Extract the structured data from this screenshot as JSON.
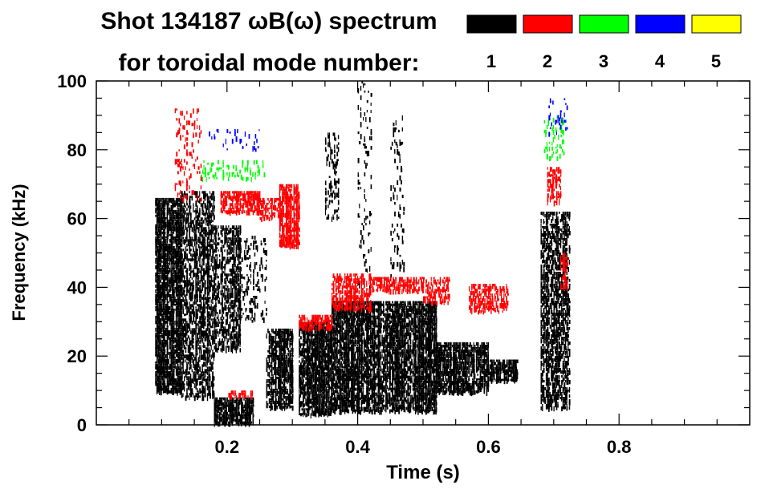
{
  "chart_data": {
    "type": "heatmap",
    "title_line1": "Shot 134187 ωB(ω) spectrum",
    "title_line2": "for toroidal mode number:",
    "xlabel": "Time (s)",
    "ylabel": "Frequency (kHz)",
    "xlim": [
      0.0,
      1.0
    ],
    "ylim": [
      0,
      100
    ],
    "x_major_ticks": [
      0.2,
      0.4,
      0.6,
      0.8
    ],
    "x_tick_labels": [
      "0.2",
      "0.4",
      "0.6",
      "0.8"
    ],
    "y_major_ticks": [
      0,
      20,
      40,
      60,
      80,
      100
    ],
    "y_tick_labels": [
      "0",
      "20",
      "40",
      "60",
      "80",
      "100"
    ],
    "legend": [
      {
        "label": "1",
        "color": "#000000"
      },
      {
        "label": "2",
        "color": "#ff0000"
      },
      {
        "label": "3",
        "color": "#00ff00"
      },
      {
        "label": "4",
        "color": "#0000ff"
      },
      {
        "label": "5",
        "color": "#ffff00"
      }
    ],
    "mode_regions": [
      {
        "mode": 1,
        "t0": 0.09,
        "t1": 0.13,
        "f0": 10,
        "f1": 66,
        "density": 0.85
      },
      {
        "mode": 1,
        "t0": 0.13,
        "t1": 0.18,
        "f0": 8,
        "f1": 68,
        "density": 0.55
      },
      {
        "mode": 1,
        "t0": 0.18,
        "t1": 0.22,
        "f0": 22,
        "f1": 58,
        "density": 0.55
      },
      {
        "mode": 1,
        "t0": 0.18,
        "t1": 0.24,
        "f0": 1,
        "f1": 8,
        "density": 0.9
      },
      {
        "mode": 1,
        "t0": 0.22,
        "t1": 0.26,
        "f0": 30,
        "f1": 55,
        "density": 0.2
      },
      {
        "mode": 1,
        "t0": 0.26,
        "t1": 0.3,
        "f0": 5,
        "f1": 28,
        "density": 0.8
      },
      {
        "mode": 1,
        "t0": 0.31,
        "t1": 0.36,
        "f0": 3,
        "f1": 30,
        "density": 0.85
      },
      {
        "mode": 1,
        "t0": 0.35,
        "t1": 0.37,
        "f0": 60,
        "f1": 85,
        "density": 0.25
      },
      {
        "mode": 1,
        "t0": 0.36,
        "t1": 0.52,
        "f0": 4,
        "f1": 36,
        "density": 0.8
      },
      {
        "mode": 1,
        "t0": 0.4,
        "t1": 0.42,
        "f0": 40,
        "f1": 100,
        "density": 0.12
      },
      {
        "mode": 1,
        "t0": 0.45,
        "t1": 0.47,
        "f0": 40,
        "f1": 90,
        "density": 0.1
      },
      {
        "mode": 1,
        "t0": 0.52,
        "t1": 0.6,
        "f0": 10,
        "f1": 24,
        "density": 0.75
      },
      {
        "mode": 1,
        "t0": 0.6,
        "t1": 0.645,
        "f0": 13,
        "f1": 19,
        "density": 0.75
      },
      {
        "mode": 1,
        "t0": 0.68,
        "t1": 0.725,
        "f0": 5,
        "f1": 62,
        "density": 0.6
      },
      {
        "mode": 2,
        "t0": 0.12,
        "t1": 0.16,
        "f0": 66,
        "f1": 92,
        "density": 0.15
      },
      {
        "mode": 2,
        "t0": 0.19,
        "t1": 0.25,
        "f0": 62,
        "f1": 68,
        "density": 0.7
      },
      {
        "mode": 2,
        "t0": 0.25,
        "t1": 0.28,
        "f0": 60,
        "f1": 66,
        "density": 0.5
      },
      {
        "mode": 2,
        "t0": 0.28,
        "t1": 0.31,
        "f0": 52,
        "f1": 70,
        "density": 0.8
      },
      {
        "mode": 2,
        "t0": 0.31,
        "t1": 0.36,
        "f0": 28,
        "f1": 32,
        "density": 0.7
      },
      {
        "mode": 2,
        "t0": 0.36,
        "t1": 0.42,
        "f0": 34,
        "f1": 44,
        "density": 0.6
      },
      {
        "mode": 2,
        "t0": 0.42,
        "t1": 0.5,
        "f0": 39,
        "f1": 43,
        "density": 0.6
      },
      {
        "mode": 2,
        "t0": 0.5,
        "t1": 0.54,
        "f0": 36,
        "f1": 43,
        "density": 0.5
      },
      {
        "mode": 2,
        "t0": 0.57,
        "t1": 0.63,
        "f0": 33,
        "f1": 41,
        "density": 0.5
      },
      {
        "mode": 2,
        "t0": 0.69,
        "t1": 0.71,
        "f0": 65,
        "f1": 75,
        "density": 0.5
      },
      {
        "mode": 2,
        "t0": 0.71,
        "t1": 0.72,
        "f0": 40,
        "f1": 50,
        "density": 0.4
      },
      {
        "mode": 2,
        "t0": 0.2,
        "t1": 0.24,
        "f0": 8,
        "f1": 10,
        "density": 0.5
      },
      {
        "mode": 3,
        "t0": 0.16,
        "t1": 0.26,
        "f0": 72,
        "f1": 77,
        "density": 0.2
      },
      {
        "mode": 3,
        "t0": 0.685,
        "t1": 0.715,
        "f0": 78,
        "f1": 90,
        "density": 0.2
      },
      {
        "mode": 4,
        "t0": 0.17,
        "t1": 0.25,
        "f0": 80,
        "f1": 86,
        "density": 0.08
      },
      {
        "mode": 4,
        "t0": 0.69,
        "t1": 0.72,
        "f0": 85,
        "f1": 95,
        "density": 0.15
      }
    ]
  }
}
